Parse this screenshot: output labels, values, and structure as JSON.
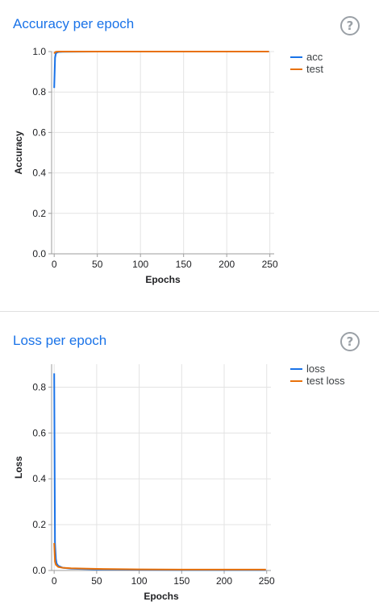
{
  "cards": [
    {
      "title": "Accuracy per epoch",
      "help_icon": "question-circle-icon",
      "legend": [
        {
          "label": "acc",
          "color": "#1a73e8"
        },
        {
          "label": "test",
          "color": "#e8710a"
        }
      ]
    },
    {
      "title": "Loss per epoch",
      "help_icon": "question-circle-icon",
      "legend": [
        {
          "label": "loss",
          "color": "#1a73e8"
        },
        {
          "label": "test loss",
          "color": "#e8710a"
        }
      ]
    }
  ],
  "chart_data": [
    {
      "type": "line",
      "xlabel": "Epochs",
      "ylabel": "Accuracy",
      "xlim": [
        -3,
        255
      ],
      "ylim": [
        0,
        1.0
      ],
      "x_ticks": [
        "0",
        "50",
        "100",
        "150",
        "200",
        "250"
      ],
      "y_ticks": [
        "0.0",
        "0.2",
        "0.4",
        "0.6",
        "0.8",
        "1.0"
      ],
      "grid": true,
      "legend_position": "top-right",
      "series": [
        {
          "name": "acc",
          "color": "#1a73e8",
          "x": [
            0,
            1,
            2,
            3,
            5,
            10,
            50,
            100,
            150,
            200,
            249
          ],
          "y": [
            0.82,
            0.97,
            0.99,
            0.995,
            0.998,
            0.999,
            1.0,
            1.0,
            1.0,
            1.0,
            1.0
          ]
        },
        {
          "name": "test",
          "color": "#e8710a",
          "x": [
            0,
            1,
            2,
            5,
            10,
            50,
            100,
            150,
            200,
            249
          ],
          "y": [
            0.99,
            0.997,
            0.999,
            1.0,
            1.0,
            1.0,
            1.0,
            1.0,
            1.0,
            1.0
          ]
        }
      ]
    },
    {
      "type": "line",
      "xlabel": "Epochs",
      "ylabel": "Loss",
      "xlim": [
        -3,
        255
      ],
      "ylim": [
        0,
        0.9
      ],
      "x_ticks": [
        "0",
        "50",
        "100",
        "150",
        "200",
        "250"
      ],
      "y_ticks": [
        "0.0",
        "0.2",
        "0.4",
        "0.6",
        "0.8"
      ],
      "grid": true,
      "legend_position": "top-right",
      "series": [
        {
          "name": "loss",
          "color": "#1a73e8",
          "x": [
            0,
            1,
            2,
            3,
            5,
            10,
            20,
            50,
            100,
            150,
            200,
            249
          ],
          "y": [
            0.86,
            0.12,
            0.05,
            0.03,
            0.02,
            0.012,
            0.008,
            0.005,
            0.003,
            0.002,
            0.002,
            0.002
          ]
        },
        {
          "name": "test loss",
          "color": "#e8710a",
          "x": [
            0,
            1,
            2,
            5,
            10,
            20,
            50,
            100,
            150,
            200,
            249
          ],
          "y": [
            0.12,
            0.04,
            0.025,
            0.015,
            0.012,
            0.01,
            0.007,
            0.005,
            0.004,
            0.004,
            0.004
          ]
        }
      ]
    }
  ]
}
